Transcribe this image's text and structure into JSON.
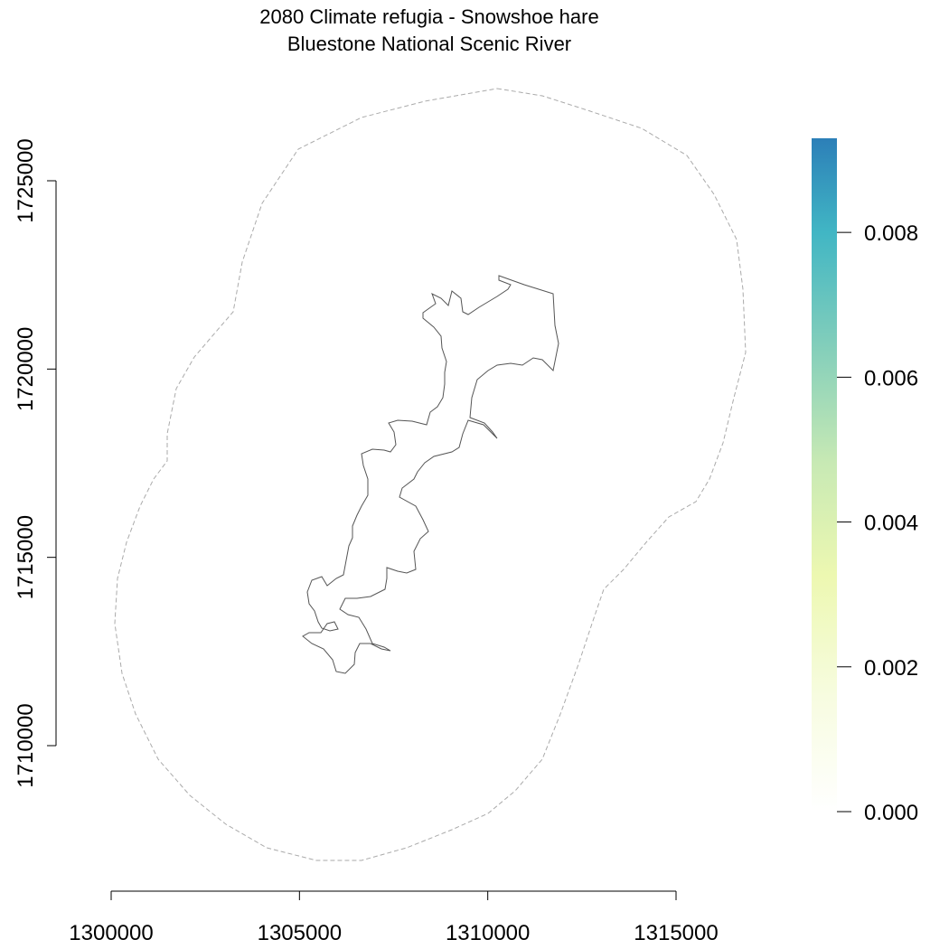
{
  "title": "2080 Climate refugia - Snowshoe hare",
  "subtitle": "Bluestone National Scenic River",
  "map": {
    "type": "raster-map",
    "x_axis": {
      "ticks": [
        "1300000",
        "1305000",
        "1310000",
        "1315000"
      ],
      "values": [
        1300000,
        1305000,
        1310000,
        1315000
      ]
    },
    "y_axis": {
      "ticks": [
        "1710000",
        "1715000",
        "1720000",
        "1725000"
      ],
      "values": [
        1710000,
        1715000,
        1720000,
        1725000
      ]
    },
    "layers": [
      {
        "name": "park-boundary",
        "style": "solid",
        "color": "#555555"
      },
      {
        "name": "buffer-boundary",
        "style": "dashed",
        "color": "#aaaaaa"
      }
    ]
  },
  "legend": {
    "colors": [
      "#ffffff",
      "#f7fce0",
      "#edf8b1",
      "#c7e9b4",
      "#7fcdbb",
      "#41b6c4",
      "#2c7fb8"
    ],
    "ticks": [
      "0.000",
      "0.002",
      "0.004",
      "0.006",
      "0.008"
    ],
    "values": [
      0.0,
      0.002,
      0.004,
      0.006,
      0.008
    ],
    "range": [
      0,
      0.0093
    ]
  }
}
